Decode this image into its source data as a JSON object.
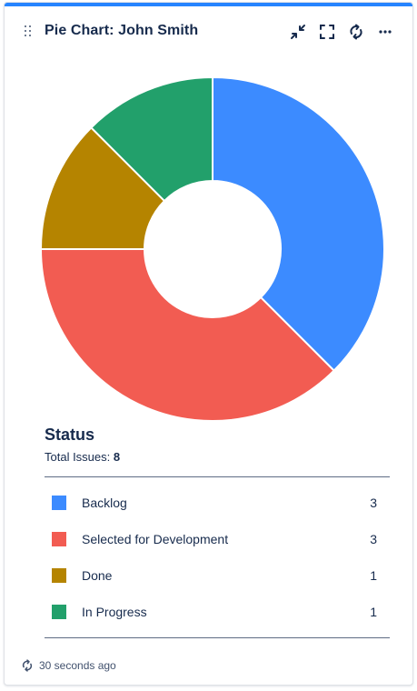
{
  "gadget": {
    "title": "Pie Chart: John Smith",
    "accent_color": "#2684ff",
    "actions": [
      {
        "icon": "minimize-icon"
      },
      {
        "icon": "fullscreen-icon"
      },
      {
        "icon": "refresh-icon"
      },
      {
        "icon": "more-icon"
      }
    ]
  },
  "legend": {
    "title": "Status",
    "total_label": "Total Issues:",
    "total_value": "8",
    "items": [
      {
        "label": "Backlog",
        "count": "3",
        "color": "#3c8bff"
      },
      {
        "label": "Selected for Development",
        "count": "3",
        "color": "#f25c52"
      },
      {
        "label": "Done",
        "count": "1",
        "color": "#b58400"
      },
      {
        "label": "In Progress",
        "count": "1",
        "color": "#22a06b"
      }
    ]
  },
  "footer": {
    "updated": "30 seconds ago"
  },
  "chart_data": {
    "type": "pie",
    "donut": true,
    "categories": [
      "Backlog",
      "Selected for Development",
      "Done",
      "In Progress"
    ],
    "values": [
      3,
      3,
      1,
      1
    ],
    "colors": [
      "#3c8bff",
      "#f25c52",
      "#b58400",
      "#22a06b"
    ],
    "title": "Status"
  }
}
